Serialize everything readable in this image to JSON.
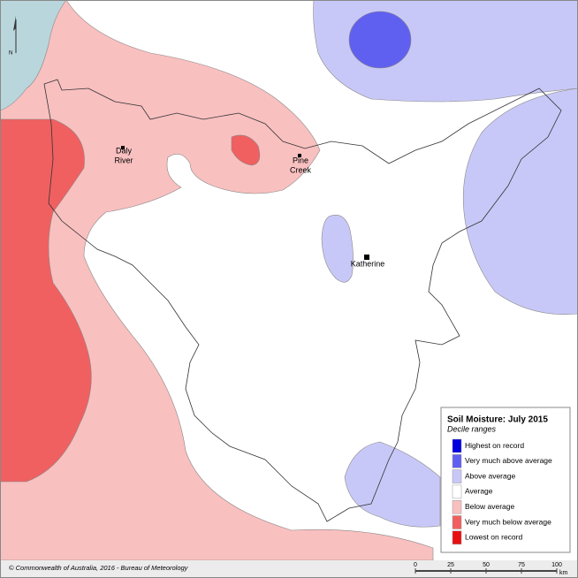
{
  "map": {
    "places": [
      {
        "name": "daly-river",
        "lines": [
          "Daly",
          "River"
        ]
      },
      {
        "name": "pine-creek",
        "lines": [
          "Pine",
          "Creek"
        ]
      },
      {
        "name": "katherine",
        "lines": [
          "Katherine"
        ]
      }
    ],
    "north_arrow": "N",
    "legend": {
      "title": "Soil Moisture: July 2015",
      "subtitle": "Decile ranges",
      "items": [
        {
          "label": "Highest on record",
          "color": "#0000e0"
        },
        {
          "label": "Very much above average",
          "color": "#6060f0"
        },
        {
          "label": "Above average",
          "color": "#c8c8f8"
        },
        {
          "label": "Average",
          "color": "#ffffff"
        },
        {
          "label": "Below average",
          "color": "#f9c0c0"
        },
        {
          "label": "Very much below average",
          "color": "#f06060"
        },
        {
          "label": "Lowest on record",
          "color": "#e81010"
        }
      ]
    },
    "scale_bar": {
      "ticks": [
        0,
        25,
        50,
        75,
        100
      ],
      "unit": "km"
    },
    "copyright": "© Commonwealth of Australia, 2016 - Bureau of Meteorology"
  }
}
